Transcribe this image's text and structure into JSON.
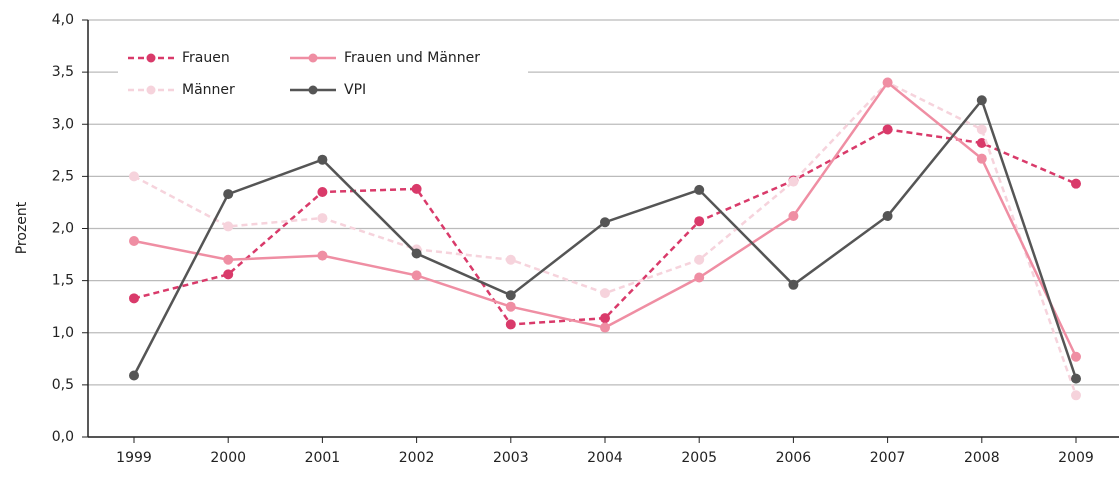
{
  "chart_data": {
    "type": "line",
    "ylabel": "Prozent",
    "categories": [
      "1999",
      "2000",
      "2001",
      "2002",
      "2003",
      "2004",
      "2005",
      "2006",
      "2007",
      "2008",
      "2009"
    ],
    "series": [
      {
        "name": "Frauen",
        "color": "#d93a6a",
        "dashed": true,
        "values": [
          1.33,
          1.56,
          2.35,
          2.38,
          1.08,
          1.14,
          2.07,
          2.46,
          2.95,
          2.82,
          2.43
        ]
      },
      {
        "name": "Männer",
        "color": "#f6d3dc",
        "dashed": true,
        "values": [
          2.5,
          2.02,
          2.1,
          1.8,
          1.7,
          1.38,
          1.7,
          2.45,
          3.4,
          2.95,
          0.4
        ]
      },
      {
        "name": "Frauen und Männer",
        "color": "#ef8ea3",
        "dashed": false,
        "values": [
          1.88,
          1.7,
          1.74,
          1.55,
          1.25,
          1.05,
          1.53,
          2.12,
          3.4,
          2.67,
          0.77
        ]
      },
      {
        "name": "VPI",
        "color": "#555555",
        "dashed": false,
        "values": [
          0.59,
          2.33,
          2.66,
          1.76,
          1.36,
          2.06,
          2.37,
          1.46,
          2.12,
          3.23,
          0.56
        ]
      }
    ],
    "ylim": [
      0,
      4
    ],
    "yticks": [
      {
        "value": 0,
        "label": "0,0"
      },
      {
        "value": 0.5,
        "label": "0,5"
      },
      {
        "value": 1,
        "label": "1,0"
      },
      {
        "value": 1.5,
        "label": "1,5"
      },
      {
        "value": 2,
        "label": "2,0"
      },
      {
        "value": 2.5,
        "label": "2,5"
      },
      {
        "value": 3,
        "label": "3,0"
      },
      {
        "value": 3.5,
        "label": "3,5"
      },
      {
        "value": 4,
        "label": "4,0"
      }
    ],
    "grid": true,
    "legend": "top-left"
  }
}
